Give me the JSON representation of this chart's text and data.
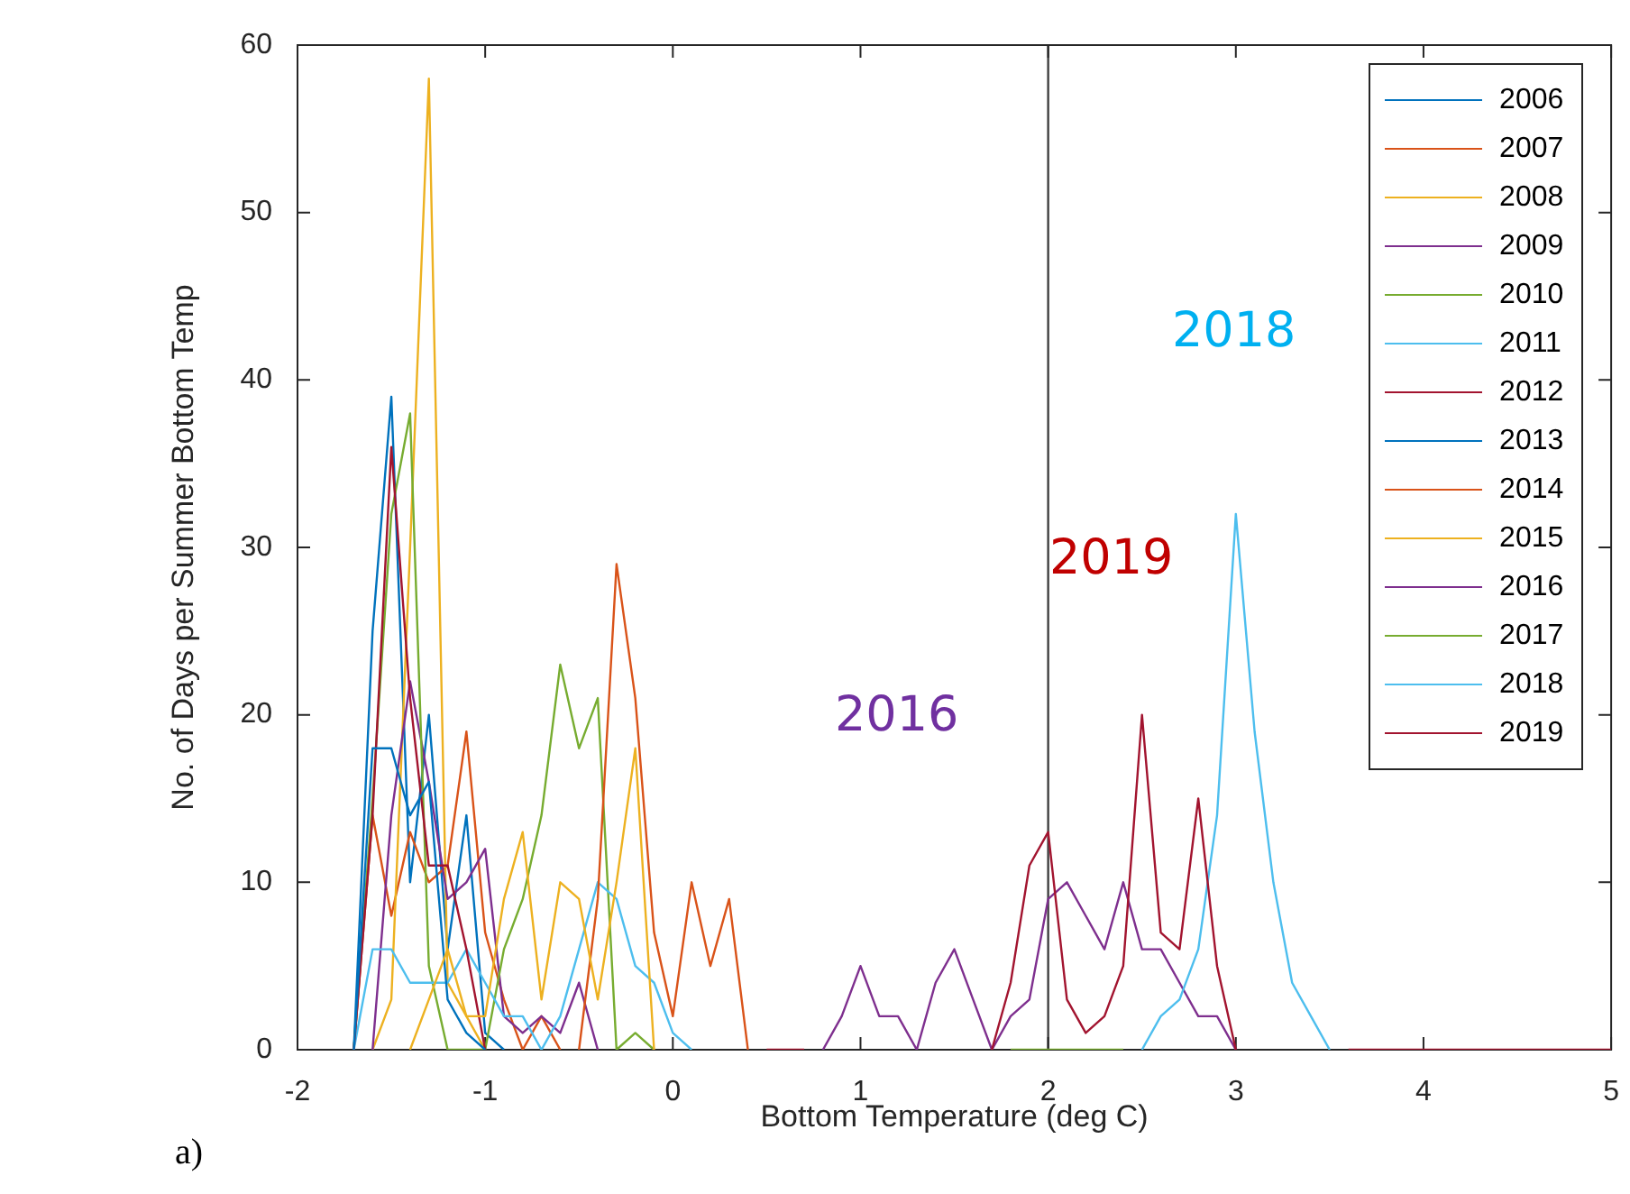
{
  "chart_data": {
    "type": "line",
    "xlabel": "Bottom Temperature (deg C)",
    "ylabel": "No. of Days per Summer Bottom Temp",
    "x": [
      -1.7,
      -1.6,
      -1.5,
      -1.4,
      -1.3,
      -1.2,
      -1.1,
      -1,
      -0.9,
      -0.8,
      -0.7,
      -0.6,
      -0.5,
      -0.4,
      -0.3,
      -0.2,
      -0.1,
      0,
      0.1,
      0.2,
      0.3,
      0.4,
      0.5,
      0.6,
      0.7,
      0.8,
      0.9,
      1,
      1.1,
      1.2,
      1.3,
      1.4,
      1.5,
      1.6,
      1.7,
      1.8,
      1.9,
      2,
      2.1,
      2.2,
      2.3,
      2.4,
      2.5,
      2.6,
      2.7,
      2.8,
      2.9,
      3,
      3.1,
      3.2,
      3.3,
      3.4,
      3.5,
      3.6,
      3.7,
      3.8,
      3.9,
      4,
      4.1,
      4.2,
      4.3,
      4.4,
      4.5,
      4.6,
      4.7,
      4.8,
      4.9,
      5
    ],
    "series": [
      {
        "name": "2006",
        "color": "#0072bd",
        "values": [
          0,
          25,
          39,
          10,
          20,
          6,
          14,
          1,
          0,
          null,
          null,
          null,
          null,
          null,
          null,
          null,
          null,
          null,
          null,
          null,
          null,
          null,
          null,
          null,
          null,
          null,
          null,
          null,
          null,
          null,
          null,
          null,
          null,
          null,
          null,
          null,
          null,
          null,
          null,
          null,
          null,
          null,
          null,
          null,
          null,
          null,
          null,
          null,
          null,
          null,
          null,
          null,
          null,
          null,
          null,
          null,
          null,
          null,
          null,
          null,
          null,
          null,
          null,
          null,
          null,
          null,
          null,
          null
        ]
      },
      {
        "name": "2007",
        "color": "#d95319",
        "values": [
          0,
          14,
          8,
          13,
          10,
          11,
          19,
          7,
          3,
          0,
          2,
          0,
          null,
          null,
          null,
          null,
          null,
          null,
          null,
          null,
          null,
          null,
          null,
          null,
          null,
          null,
          null,
          null,
          null,
          null,
          null,
          null,
          null,
          null,
          null,
          null,
          null,
          null,
          null,
          null,
          null,
          null,
          null,
          null,
          null,
          null,
          null,
          null,
          null,
          null,
          null,
          null,
          null,
          null,
          null,
          null,
          null,
          null,
          null,
          null,
          null,
          null,
          null,
          null,
          null,
          null,
          null,
          null
        ]
      },
      {
        "name": "2008",
        "color": "#edb120",
        "values": [
          null,
          0,
          3,
          30,
          58,
          4,
          2,
          0,
          null,
          null,
          null,
          null,
          null,
          null,
          null,
          null,
          null,
          null,
          null,
          null,
          null,
          null,
          null,
          null,
          null,
          null,
          null,
          null,
          null,
          null,
          null,
          null,
          null,
          null,
          null,
          null,
          null,
          null,
          null,
          null,
          null,
          null,
          null,
          null,
          null,
          null,
          null,
          null,
          null,
          null,
          null,
          null,
          null,
          null,
          null,
          null,
          null,
          null,
          null,
          null,
          null,
          null,
          null,
          null,
          null,
          null,
          null,
          null
        ]
      },
      {
        "name": "2009",
        "color": "#7e2f8e",
        "values": [
          null,
          0,
          14,
          22,
          16,
          9,
          10,
          12,
          2,
          1,
          2,
          1,
          4,
          0,
          null,
          null,
          null,
          null,
          null,
          null,
          null,
          null,
          null,
          null,
          null,
          null,
          null,
          null,
          null,
          null,
          null,
          null,
          null,
          null,
          null,
          null,
          null,
          null,
          null,
          null,
          null,
          null,
          null,
          null,
          null,
          null,
          null,
          null,
          null,
          null,
          null,
          null,
          null,
          null,
          null,
          null,
          null,
          null,
          null,
          null,
          null,
          null,
          null,
          null,
          null,
          null,
          null,
          null
        ]
      },
      {
        "name": "2010",
        "color": "#77ac30",
        "values": [
          0,
          15,
          32,
          38,
          5,
          0,
          0,
          0,
          6,
          9,
          14,
          23,
          18,
          21,
          0,
          1,
          0,
          null,
          null,
          null,
          null,
          null,
          null,
          null,
          null,
          null,
          null,
          null,
          null,
          null,
          null,
          null,
          null,
          null,
          null,
          null,
          null,
          null,
          null,
          null,
          null,
          null,
          null,
          null,
          null,
          null,
          null,
          null,
          null,
          null,
          null,
          null,
          null,
          null,
          null,
          null,
          null,
          null,
          null,
          null,
          null,
          null,
          null,
          null,
          null,
          null,
          null,
          null
        ]
      },
      {
        "name": "2011",
        "color": "#4dbeee",
        "values": [
          0,
          6,
          6,
          4,
          4,
          4,
          6,
          4,
          2,
          2,
          0,
          2,
          6,
          10,
          9,
          5,
          4,
          1,
          0,
          null,
          null,
          null,
          null,
          null,
          null,
          null,
          null,
          null,
          null,
          null,
          null,
          null,
          null,
          null,
          null,
          null,
          null,
          null,
          null,
          null,
          null,
          null,
          null,
          null,
          null,
          null,
          null,
          null,
          null,
          null,
          null,
          null,
          null,
          null,
          null,
          null,
          null,
          null,
          null,
          null,
          null,
          null,
          null,
          null,
          null,
          null,
          null,
          null
        ]
      },
      {
        "name": "2012",
        "color": "#a2142f",
        "values": [
          0,
          14,
          36,
          21,
          11,
          11,
          6,
          0,
          null,
          null,
          null,
          null,
          null,
          null,
          null,
          null,
          null,
          null,
          null,
          null,
          null,
          null,
          null,
          null,
          null,
          null,
          null,
          null,
          null,
          null,
          null,
          null,
          null,
          null,
          null,
          null,
          null,
          null,
          null,
          null,
          null,
          null,
          null,
          null,
          null,
          null,
          null,
          null,
          null,
          null,
          null,
          null,
          null,
          null,
          null,
          null,
          null,
          null,
          null,
          null,
          null,
          null,
          null,
          null,
          null,
          null,
          null,
          null
        ]
      },
      {
        "name": "2013",
        "color": "#0072bd",
        "values": [
          0,
          18,
          18,
          14,
          16,
          3,
          1,
          0,
          null,
          null,
          null,
          null,
          null,
          null,
          null,
          null,
          null,
          null,
          null,
          null,
          null,
          null,
          null,
          null,
          null,
          null,
          null,
          null,
          null,
          null,
          null,
          null,
          null,
          null,
          null,
          null,
          null,
          null,
          null,
          null,
          null,
          null,
          null,
          null,
          null,
          null,
          null,
          null,
          null,
          null,
          null,
          null,
          null,
          null,
          null,
          null,
          null,
          null,
          null,
          null,
          null,
          null,
          null,
          null,
          null,
          null,
          null,
          null
        ]
      },
      {
        "name": "2014",
        "color": "#d95319",
        "values": [
          null,
          null,
          null,
          null,
          null,
          null,
          null,
          null,
          null,
          null,
          null,
          null,
          0,
          9,
          29,
          21,
          7,
          2,
          10,
          5,
          9,
          0,
          null,
          null,
          null,
          null,
          null,
          null,
          null,
          null,
          null,
          null,
          null,
          null,
          null,
          null,
          null,
          null,
          null,
          null,
          null,
          null,
          null,
          null,
          null,
          null,
          null,
          null,
          null,
          null,
          null,
          null,
          null,
          null,
          null,
          null,
          null,
          null,
          null,
          null,
          null,
          null,
          null,
          null,
          null,
          null,
          null,
          null
        ]
      },
      {
        "name": "2015",
        "color": "#edb120",
        "values": [
          null,
          null,
          null,
          0,
          3,
          6,
          2,
          2,
          9,
          13,
          3,
          10,
          9,
          3,
          10,
          18,
          0,
          null,
          null,
          null,
          null,
          null,
          null,
          null,
          null,
          null,
          null,
          null,
          null,
          null,
          null,
          null,
          null,
          null,
          null,
          null,
          null,
          null,
          null,
          null,
          null,
          null,
          null,
          null,
          null,
          null,
          null,
          null,
          null,
          null,
          null,
          null,
          null,
          null,
          null,
          null,
          null,
          null,
          null,
          null,
          null,
          null,
          null,
          null,
          null,
          null,
          null,
          null
        ]
      },
      {
        "name": "2016",
        "color": "#7e2f8e",
        "values": [
          null,
          null,
          null,
          null,
          null,
          null,
          null,
          null,
          null,
          null,
          null,
          null,
          null,
          null,
          null,
          null,
          null,
          null,
          null,
          null,
          null,
          null,
          null,
          null,
          null,
          0,
          2,
          5,
          2,
          2,
          0,
          4,
          6,
          3,
          0,
          2,
          3,
          9,
          10,
          8,
          6,
          10,
          6,
          6,
          4,
          2,
          2,
          0,
          null,
          null,
          null,
          null,
          null,
          null,
          null,
          null,
          null,
          null,
          null,
          null,
          null,
          null,
          null,
          null,
          null,
          null,
          null,
          null
        ]
      },
      {
        "name": "2017",
        "color": "#77ac30",
        "values": [
          null,
          null,
          null,
          null,
          null,
          null,
          null,
          null,
          null,
          null,
          null,
          null,
          null,
          null,
          null,
          null,
          null,
          null,
          null,
          null,
          null,
          null,
          null,
          null,
          null,
          null,
          null,
          null,
          null,
          null,
          null,
          null,
          null,
          null,
          null,
          0,
          0,
          0,
          0,
          0,
          0,
          0,
          null,
          null,
          null,
          null,
          null,
          null,
          null,
          null,
          null,
          null,
          null,
          null,
          null,
          null,
          null,
          null,
          null,
          null,
          null,
          null,
          null,
          null,
          null,
          null,
          null,
          null
        ]
      },
      {
        "name": "2018",
        "color": "#4dbeee",
        "values": [
          null,
          null,
          null,
          null,
          null,
          null,
          null,
          null,
          null,
          null,
          null,
          null,
          null,
          null,
          null,
          null,
          null,
          null,
          null,
          null,
          null,
          null,
          null,
          null,
          null,
          null,
          null,
          null,
          null,
          null,
          null,
          null,
          null,
          null,
          null,
          null,
          null,
          null,
          null,
          null,
          null,
          null,
          0,
          2,
          3,
          6,
          14,
          32,
          19,
          10,
          4,
          2,
          0,
          null,
          null,
          null,
          null,
          null,
          null,
          null,
          null,
          null,
          null,
          null,
          null,
          null,
          null,
          null
        ]
      },
      {
        "name": "2019",
        "color": "#a2142f",
        "values": [
          null,
          null,
          null,
          null,
          null,
          null,
          null,
          null,
          null,
          null,
          null,
          null,
          null,
          null,
          null,
          null,
          null,
          null,
          null,
          null,
          null,
          null,
          0,
          0,
          0,
          null,
          null,
          null,
          null,
          null,
          null,
          null,
          null,
          null,
          0,
          4,
          11,
          13,
          3,
          1,
          2,
          5,
          20,
          7,
          6,
          15,
          5,
          0,
          null,
          null,
          null,
          null,
          null,
          0,
          0,
          0,
          0,
          0,
          0,
          0,
          0,
          0,
          0,
          0,
          0,
          0,
          0,
          0
        ]
      }
    ],
    "xlim": [
      -2,
      5
    ],
    "xticks": [
      -2,
      -1,
      0,
      1,
      2,
      3,
      4,
      5
    ],
    "ylim": [
      0,
      60
    ],
    "yticks": [
      0,
      10,
      20,
      30,
      40,
      50,
      60
    ],
    "ref_lines": [
      {
        "axis": "x",
        "value": 2,
        "color": "#404040"
      }
    ],
    "annotations": [
      "2016",
      "2019",
      "2018",
      "a)"
    ],
    "legend": "top right",
    "grid": false
  }
}
